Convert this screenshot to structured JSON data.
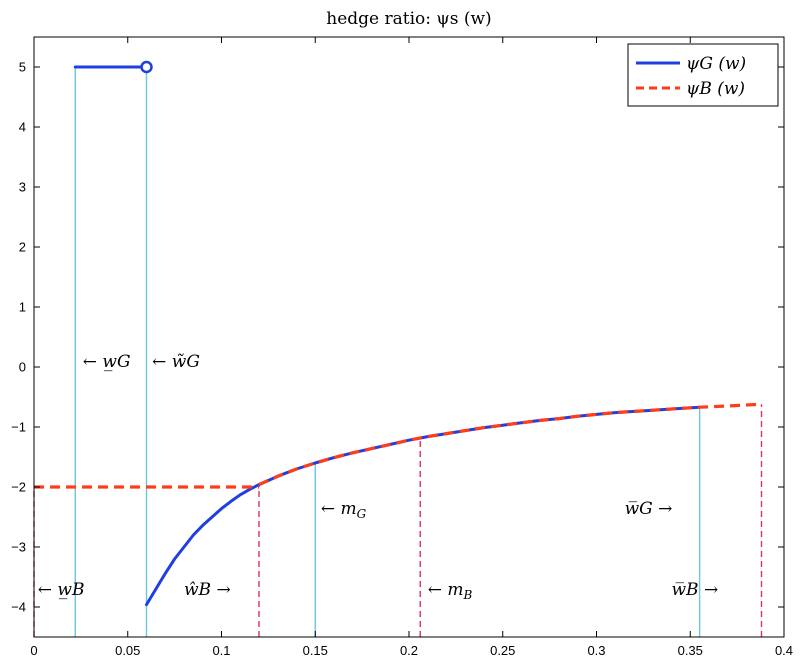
{
  "chart_data": {
    "type": "line",
    "title": "hedge ratio:  ψs (w)",
    "xlabel": "",
    "ylabel": "",
    "xlim": [
      0,
      0.4
    ],
    "ylim": [
      -4.5,
      5.5
    ],
    "xticks": [
      0,
      0.05,
      0.1,
      0.15,
      0.2,
      0.25,
      0.3,
      0.35,
      0.4
    ],
    "xtick_labels": [
      "0",
      "0.05",
      "0.1",
      "0.15",
      "0.2",
      "0.25",
      "0.3",
      "0.35",
      "0.4"
    ],
    "yticks": [
      -4,
      -3,
      -2,
      -1,
      0,
      1,
      2,
      3,
      4,
      5
    ],
    "ytick_labels": [
      "−4",
      "−3",
      "−2",
      "−1",
      "0",
      "1",
      "2",
      "3",
      "4",
      "5"
    ],
    "grid": false,
    "legend_position": "top-right",
    "colors": {
      "psi_G": "#1f3fe0",
      "psi_B": "#ff3d1a",
      "vline_G": "#6cc6dc",
      "vline_B": "#d8335f"
    },
    "series": [
      {
        "name": "ψG (w)",
        "style": "solid",
        "segments": [
          [
            [
              0.022,
              5.0
            ],
            [
              0.059,
              5.0
            ]
          ],
          [
            [
              0.06,
              -3.96
            ],
            [
              0.065,
              -3.7
            ],
            [
              0.07,
              -3.44
            ],
            [
              0.075,
              -3.2
            ],
            [
              0.08,
              -3.0
            ],
            [
              0.085,
              -2.8
            ],
            [
              0.09,
              -2.64
            ],
            [
              0.095,
              -2.5
            ],
            [
              0.1,
              -2.36
            ],
            [
              0.105,
              -2.24
            ],
            [
              0.11,
              -2.13
            ],
            [
              0.115,
              -2.04
            ],
            [
              0.12,
              -1.96
            ],
            [
              0.13,
              -1.82
            ],
            [
              0.14,
              -1.7
            ],
            [
              0.15,
              -1.6
            ],
            [
              0.16,
              -1.51
            ],
            [
              0.17,
              -1.43
            ],
            [
              0.18,
              -1.36
            ],
            [
              0.19,
              -1.29
            ],
            [
              0.2,
              -1.22
            ],
            [
              0.21,
              -1.16
            ],
            [
              0.22,
              -1.11
            ],
            [
              0.23,
              -1.06
            ],
            [
              0.24,
              -1.01
            ],
            [
              0.25,
              -0.97
            ],
            [
              0.26,
              -0.93
            ],
            [
              0.27,
              -0.89
            ],
            [
              0.28,
              -0.86
            ],
            [
              0.29,
              -0.82
            ],
            [
              0.3,
              -0.79
            ],
            [
              0.31,
              -0.76
            ],
            [
              0.32,
              -0.74
            ],
            [
              0.33,
              -0.72
            ],
            [
              0.34,
              -0.7
            ],
            [
              0.355,
              -0.67
            ]
          ]
        ],
        "end_marker": [
          0.06,
          5.0
        ]
      },
      {
        "name": "ψB (w)",
        "style": "dashed",
        "segments": [
          [
            [
              0,
              -2.0
            ],
            [
              0.12,
              -2.0
            ]
          ],
          [
            [
              0.12,
              -1.96
            ],
            [
              0.13,
              -1.82
            ],
            [
              0.14,
              -1.7
            ],
            [
              0.15,
              -1.6
            ],
            [
              0.16,
              -1.51
            ],
            [
              0.17,
              -1.43
            ],
            [
              0.18,
              -1.36
            ],
            [
              0.19,
              -1.29
            ],
            [
              0.2,
              -1.22
            ],
            [
              0.21,
              -1.16
            ],
            [
              0.22,
              -1.11
            ],
            [
              0.23,
              -1.06
            ],
            [
              0.24,
              -1.01
            ],
            [
              0.25,
              -0.97
            ],
            [
              0.26,
              -0.93
            ],
            [
              0.27,
              -0.89
            ],
            [
              0.28,
              -0.86
            ],
            [
              0.29,
              -0.82
            ],
            [
              0.3,
              -0.79
            ],
            [
              0.31,
              -0.76
            ],
            [
              0.32,
              -0.74
            ],
            [
              0.33,
              -0.72
            ],
            [
              0.34,
              -0.7
            ],
            [
              0.355,
              -0.67
            ],
            [
              0.37,
              -0.65
            ],
            [
              0.388,
              -0.62
            ]
          ]
        ]
      }
    ],
    "vlines": [
      {
        "x": 0.022,
        "y0": -4.5,
        "y1": 5.0,
        "kind": "G"
      },
      {
        "x": 0.06,
        "y0": -4.5,
        "y1": 5.0,
        "kind": "G"
      },
      {
        "x": 0.15,
        "y0": -4.5,
        "y1": -1.6,
        "kind": "G"
      },
      {
        "x": 0.355,
        "y0": -4.5,
        "y1": -0.67,
        "kind": "G"
      },
      {
        "x": 0.12,
        "y0": -4.5,
        "y1": -1.96,
        "kind": "B"
      },
      {
        "x": 0.206,
        "y0": -4.5,
        "y1": -1.18,
        "kind": "B"
      },
      {
        "x": 0.388,
        "y0": -4.5,
        "y1": -0.62,
        "kind": "B"
      },
      {
        "x": 0.0,
        "y0": -4.5,
        "y1": -2.0,
        "kind": "B"
      }
    ],
    "annotations": [
      {
        "text": "← w̲G",
        "x": 0.026,
        "y": 0.1
      },
      {
        "text": "← w̃G",
        "x": 0.063,
        "y": 0.1
      },
      {
        "text": "← m",
        "sub": "G",
        "x": 0.153,
        "y": -2.35
      },
      {
        "text": "w̅G →",
        "x": 0.315,
        "y": -2.35
      },
      {
        "text": "← w̲B",
        "x": 0.002,
        "y": -3.7
      },
      {
        "text": "ŵB →",
        "x": 0.08,
        "y": -3.7
      },
      {
        "text": "← m",
        "sub": "B",
        "x": 0.21,
        "y": -3.7
      },
      {
        "text": "w̅B →",
        "x": 0.34,
        "y": -3.7
      }
    ]
  }
}
